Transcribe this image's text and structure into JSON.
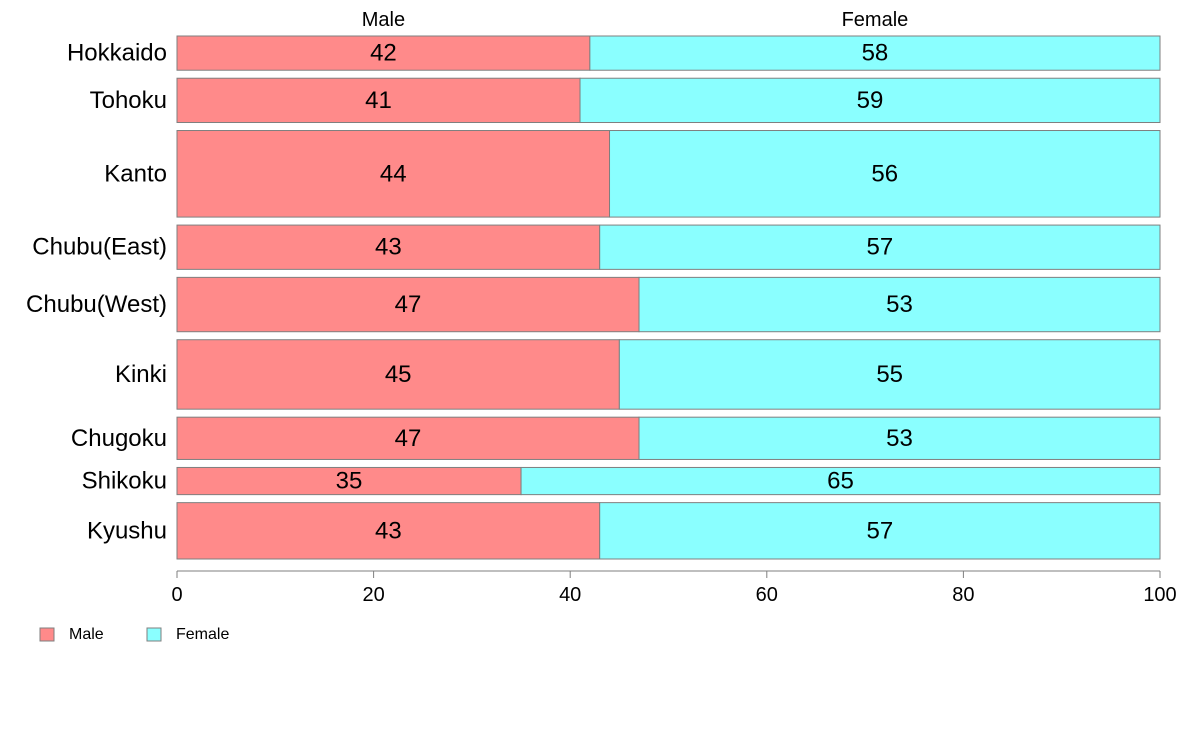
{
  "chart_data": {
    "type": "bar",
    "orientation": "horizontal",
    "stacked": true,
    "title": "",
    "xlabel": "",
    "ylabel": "",
    "xlim": [
      0,
      100
    ],
    "x_ticks": [
      0,
      20,
      40,
      60,
      80,
      100
    ],
    "grid": false,
    "legend_position": "bottom-left",
    "column_headers": [
      "Male",
      "Female"
    ],
    "categories": [
      "Hokkaido",
      "Tohoku",
      "Kanto",
      "Chubu(East)",
      "Chubu(West)",
      "Kinki",
      "Chugoku",
      "Shikoku",
      "Kyushu"
    ],
    "series": [
      {
        "name": "Male",
        "color": "#ff8a8a",
        "values": [
          42,
          41,
          44,
          43,
          47,
          45,
          47,
          35,
          43
        ]
      },
      {
        "name": "Female",
        "color": "#8affff",
        "values": [
          58,
          59,
          56,
          57,
          53,
          55,
          53,
          65,
          57
        ]
      }
    ],
    "category_weights": [
      3.4,
      4.4,
      8.6,
      4.4,
      5.4,
      6.9,
      4.2,
      2.7,
      5.6
    ]
  }
}
